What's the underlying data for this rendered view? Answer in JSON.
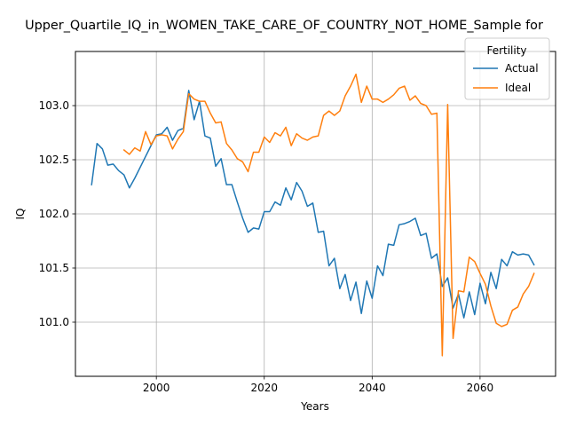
{
  "chart_data": {
    "type": "line",
    "title": "Upper_Quartile_IQ_in_WOMEN_TAKE_CARE_OF_COUNTRY_NOT_HOME_Sample for",
    "xlabel": "Years",
    "ylabel": "IQ",
    "xlim": [
      1985,
      2074
    ],
    "ylim": [
      100.5,
      103.5
    ],
    "xticks": [
      2000,
      2020,
      2040,
      2060
    ],
    "yticks": [
      101.0,
      101.5,
      102.0,
      102.5,
      103.0
    ],
    "xtick_labels": [
      "2000",
      "2020",
      "2040",
      "2060"
    ],
    "ytick_labels": [
      "101.0",
      "101.5",
      "102.0",
      "102.5",
      "103.0"
    ],
    "grid": true,
    "legend": {
      "title": "Fertility",
      "placement": "top-right",
      "entries": [
        "Actual",
        "Ideal"
      ]
    },
    "series": [
      {
        "name": "Actual",
        "color": "#1f77b4",
        "x": [
          1988,
          1989,
          1990,
          1991,
          1992,
          1993,
          1994,
          1995,
          1996,
          1997,
          1998,
          1999,
          2000,
          2001,
          2002,
          2003,
          2004,
          2005,
          2006,
          2007,
          2008,
          2009,
          2010,
          2011,
          2012,
          2013,
          2014,
          2015,
          2016,
          2017,
          2018,
          2019,
          2020,
          2021,
          2022,
          2023,
          2024,
          2025,
          2026,
          2027,
          2028,
          2029,
          2030,
          2031,
          2032,
          2033,
          2034,
          2035,
          2036,
          2037,
          2038,
          2039,
          2040,
          2041,
          2042,
          2043,
          2044,
          2045,
          2046,
          2047,
          2048,
          2049,
          2050,
          2051,
          2052,
          2053,
          2054,
          2055,
          2056,
          2057,
          2058,
          2059,
          2060,
          2061,
          2062,
          2063,
          2064,
          2065,
          2066,
          2067,
          2068,
          2069,
          2070
        ],
        "y": [
          102.27,
          102.65,
          102.6,
          102.45,
          102.46,
          102.4,
          102.36,
          102.24,
          102.33,
          102.43,
          102.53,
          102.63,
          102.73,
          102.74,
          102.8,
          102.68,
          102.77,
          102.79,
          103.14,
          102.87,
          103.04,
          102.72,
          102.7,
          102.44,
          102.51,
          102.27,
          102.27,
          102.11,
          101.96,
          101.83,
          101.87,
          101.86,
          102.02,
          102.02,
          102.11,
          102.08,
          102.24,
          102.13,
          102.29,
          102.21,
          102.07,
          102.1,
          101.83,
          101.84,
          101.52,
          101.59,
          101.31,
          101.44,
          101.2,
          101.37,
          101.08,
          101.38,
          101.22,
          101.52,
          101.43,
          101.72,
          101.71,
          101.9,
          101.91,
          101.93,
          101.96,
          101.8,
          101.82,
          101.59,
          101.63,
          101.33,
          101.41,
          101.13,
          101.26,
          101.04,
          101.28,
          101.07,
          101.36,
          101.17,
          101.46,
          101.31,
          101.58,
          101.52,
          101.65,
          101.62,
          101.63,
          101.62,
          101.53
        ]
      },
      {
        "name": "Ideal",
        "color": "#ff7f0e",
        "x": [
          1994,
          1995,
          1996,
          1997,
          1998,
          1999,
          2000,
          2001,
          2002,
          2003,
          2004,
          2005,
          2006,
          2007,
          2008,
          2009,
          2010,
          2011,
          2012,
          2013,
          2014,
          2015,
          2016,
          2017,
          2018,
          2019,
          2020,
          2021,
          2022,
          2023,
          2024,
          2025,
          2026,
          2027,
          2028,
          2029,
          2030,
          2031,
          2032,
          2033,
          2034,
          2035,
          2036,
          2037,
          2038,
          2039,
          2040,
          2041,
          2042,
          2043,
          2044,
          2045,
          2046,
          2047,
          2048,
          2049,
          2050,
          2051,
          2052,
          2053,
          2054,
          2055,
          2056,
          2057,
          2058,
          2059,
          2060,
          2061,
          2062,
          2063,
          2064,
          2065,
          2066,
          2067,
          2068,
          2069,
          2070
        ],
        "y": [
          102.59,
          102.55,
          102.61,
          102.58,
          102.76,
          102.64,
          102.72,
          102.73,
          102.72,
          102.6,
          102.69,
          102.76,
          103.11,
          103.06,
          103.04,
          103.04,
          102.93,
          102.84,
          102.85,
          102.65,
          102.59,
          102.51,
          102.48,
          102.39,
          102.57,
          102.57,
          102.71,
          102.66,
          102.75,
          102.72,
          102.8,
          102.63,
          102.74,
          102.7,
          102.68,
          102.71,
          102.72,
          102.91,
          102.95,
          102.91,
          102.95,
          103.09,
          103.18,
          103.29,
          103.03,
          103.18,
          103.06,
          103.06,
          103.03,
          103.06,
          103.1,
          103.16,
          103.18,
          103.05,
          103.09,
          103.02,
          103.0,
          102.92,
          102.93,
          100.69,
          103.01,
          100.85,
          101.29,
          101.28,
          101.6,
          101.56,
          101.45,
          101.35,
          101.15,
          100.99,
          100.96,
          100.98,
          101.11,
          101.14,
          101.26,
          101.33,
          101.45
        ]
      }
    ]
  }
}
